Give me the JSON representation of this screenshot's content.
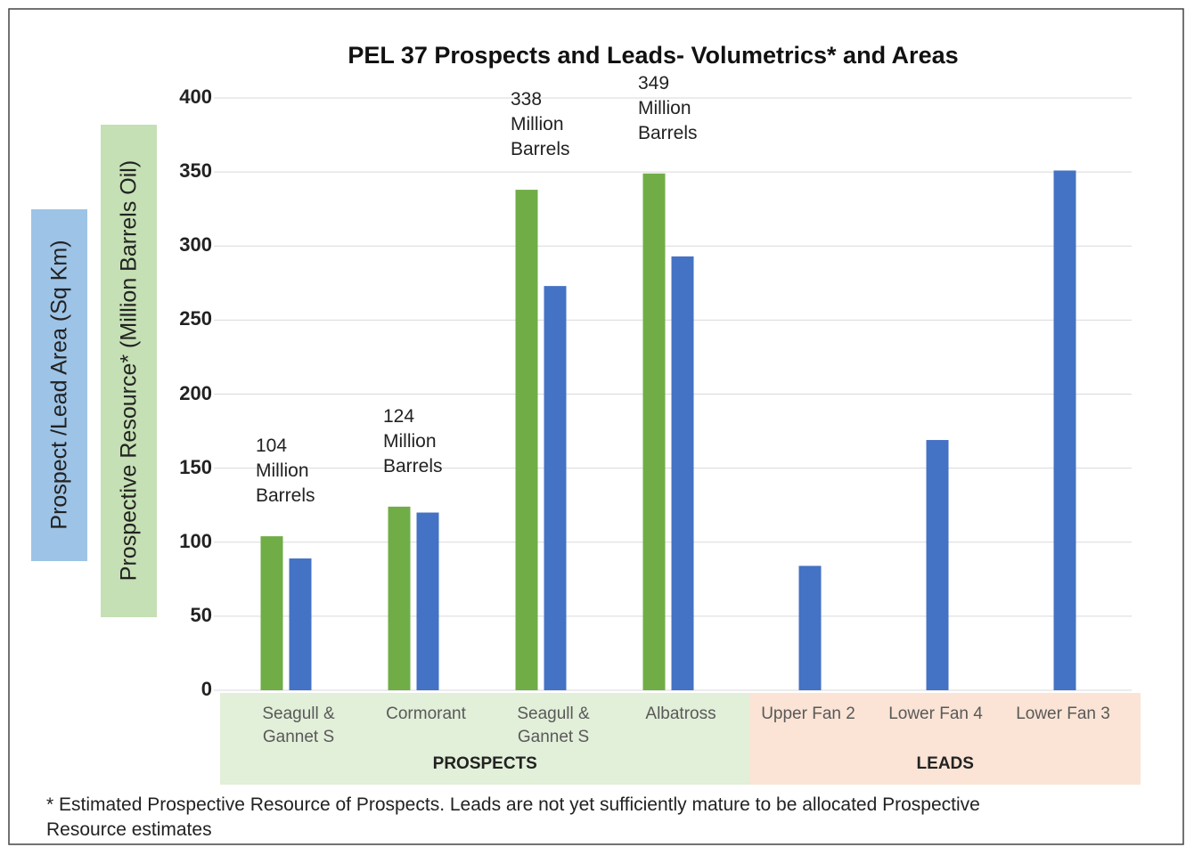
{
  "chart_data": {
    "type": "bar",
    "title": "PEL 37 Prospects and Leads- Volumetrics* and Areas",
    "y_axis_labels": [
      "Prospect /Lead Area (Sq Km)",
      "Prospective Resource* (Million Barrels Oil)"
    ],
    "categories": [
      "Seagull &\nGannet S",
      "Cormorant",
      "Seagull &\nGannet S",
      "Albatross",
      "Upper Fan 2",
      "Lower Fan 4",
      "Lower Fan 3"
    ],
    "category_groups": [
      "PROSPECTS",
      "PROSPECTS",
      "PROSPECTS",
      "PROSPECTS",
      "LEADS",
      "LEADS",
      "LEADS"
    ],
    "group_colors": {
      "PROSPECTS": "#e2efd9",
      "LEADS": "#fbe4d5"
    },
    "series": [
      {
        "color": "#70ad47",
        "values": [
          104,
          124,
          338,
          349,
          null,
          null,
          null
        ],
        "value_labels": [
          "104\nMillion\nBarrels",
          "124\nMillion\nBarrels",
          "338\nMillion\nBarrels",
          "349\nMillion\nBarrels",
          null,
          null,
          null
        ]
      },
      {
        "color": "#4472c4",
        "values": [
          89,
          120,
          273,
          293,
          84,
          169,
          351
        ]
      }
    ],
    "ylim": [
      0,
      400
    ],
    "yticks": [
      0,
      50,
      100,
      150,
      200,
      250,
      300,
      350,
      400
    ],
    "grid": true,
    "footnote": "* Estimated Prospective Resource of Prospects. Leads are not yet sufficiently mature to be allocated Prospective Resource estimates"
  }
}
